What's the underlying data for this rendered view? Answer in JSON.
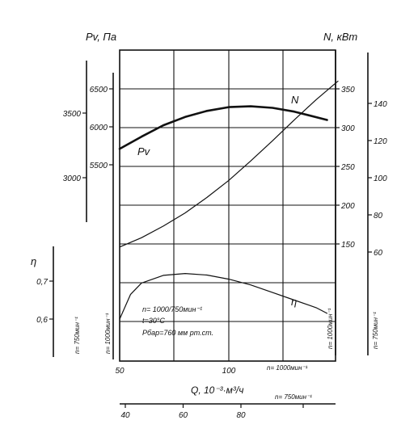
{
  "chart_data": {
    "type": "line",
    "grid": true,
    "title": "",
    "x": {
      "label": "Q, 10⁻³·м³/ч",
      "range": [
        50,
        150
      ],
      "ticks": [
        50,
        100
      ],
      "tick_labels": [
        "50",
        "100"
      ],
      "rpm_note": "n= 1000мин⁻¹"
    },
    "x_secondary": {
      "ticks": [
        40,
        60,
        80
      ],
      "tick_labels": [
        "40",
        "60",
        "80"
      ],
      "rpm_note": "n= 750мин⁻¹"
    },
    "y_pv_1000": {
      "label": "Pv, Па",
      "ticks": [
        5500,
        6000,
        6500
      ],
      "tick_labels": [
        "5500",
        "6000",
        "6500"
      ],
      "rpm_note": "n= 1000мин⁻¹"
    },
    "y_pv_750": {
      "ticks": [
        3000,
        3500
      ],
      "tick_labels": [
        "3000",
        "3500"
      ],
      "rpm_note": "n= 750мин⁻¹"
    },
    "y_eta": {
      "label": "η",
      "ticks": [
        0.6,
        0.7
      ],
      "tick_labels": [
        "0,6",
        "0,7"
      ],
      "rpm_note": "n= 750мин⁻¹"
    },
    "y_n_1000": {
      "label": "N, кВт",
      "ticks": [
        150,
        200,
        250,
        300,
        350
      ],
      "tick_labels": [
        "150",
        "200",
        "250",
        "300",
        "350"
      ],
      "rpm_note": "n= 1000мин⁻¹"
    },
    "y_n_750": {
      "ticks": [
        60,
        80,
        100,
        120,
        140
      ],
      "tick_labels": [
        "60",
        "80",
        "100",
        "120",
        "140"
      ],
      "rpm_note": "n= 750мин⁻¹"
    },
    "series": [
      {
        "name": "Pv",
        "axis": "y_pv_1000",
        "x": [
          50,
          60,
          70,
          80,
          90,
          100,
          110,
          120,
          130,
          145
        ],
        "y": [
          5710,
          5870,
          6020,
          6130,
          6210,
          6260,
          6270,
          6250,
          6200,
          6090
        ]
      },
      {
        "name": "N",
        "axis": "y_n_1000",
        "x": [
          50,
          60,
          70,
          80,
          90,
          100,
          110,
          120,
          130,
          140,
          150
        ],
        "y": [
          146,
          158,
          173,
          190,
          210,
          232,
          257,
          283,
          310,
          336,
          360
        ]
      },
      {
        "name": "η",
        "axis": "y_eta",
        "x": [
          50,
          55,
          60,
          70,
          80,
          90,
          100,
          110,
          120,
          130,
          140,
          145
        ],
        "y": [
          0.6,
          0.665,
          0.695,
          0.715,
          0.72,
          0.716,
          0.705,
          0.69,
          0.67,
          0.65,
          0.63,
          0.615
        ]
      }
    ],
    "annotations": [
      "n= 1000/750мин⁻¹",
      "t=30°C",
      "Рбар=760 мм рт.ст."
    ]
  }
}
